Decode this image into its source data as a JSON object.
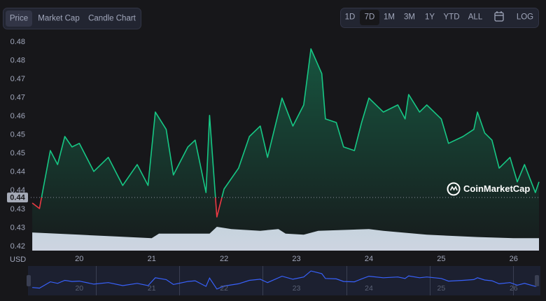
{
  "tabs": [
    "Price",
    "Market Cap",
    "Candle Chart"
  ],
  "ranges": [
    "1D",
    "7D",
    "1M",
    "3M",
    "1Y",
    "YTD",
    "ALL"
  ],
  "log_label": "LOG",
  "watermark": "CoinMarketCap",
  "chart_data": {
    "type": "line",
    "y_axis_label": "USD",
    "current_price": 0.435,
    "current_price_label": "0.44",
    "x": [
      19.35,
      19.45,
      19.5,
      19.6,
      19.7,
      19.8,
      19.9,
      20.0,
      20.2,
      20.4,
      20.6,
      20.8,
      20.95,
      21.05,
      21.2,
      21.3,
      21.5,
      21.6,
      21.75,
      21.8,
      21.9,
      22.0,
      22.2,
      22.35,
      22.5,
      22.6,
      22.8,
      22.95,
      23.1,
      23.2,
      23.35,
      23.4,
      23.55,
      23.65,
      23.8,
      23.9,
      24.0,
      24.2,
      24.4,
      24.5,
      24.55,
      24.7,
      24.8,
      25.0,
      25.1,
      25.3,
      25.45,
      25.5,
      25.6,
      25.7,
      25.8,
      25.95,
      26.05,
      26.15,
      26.3,
      26.35
    ],
    "series": [
      {
        "name": "Price",
        "color": "#16c784",
        "color_below": "#ea3943",
        "values": [
          0.4333,
          0.4316,
          0.4376,
          0.4494,
          0.4451,
          0.4537,
          0.4505,
          0.4516,
          0.443,
          0.4473,
          0.4387,
          0.4451,
          0.4387,
          0.4612,
          0.4559,
          0.4419,
          0.4505,
          0.4526,
          0.4365,
          0.4602,
          0.429,
          0.4376,
          0.444,
          0.4537,
          0.4569,
          0.4473,
          0.4655,
          0.4569,
          0.4634,
          0.4806,
          0.473,
          0.4591,
          0.458,
          0.4505,
          0.4494,
          0.458,
          0.4655,
          0.4612,
          0.4634,
          0.4591,
          0.4666,
          0.4612,
          0.4634,
          0.4591,
          0.4516,
          0.4537,
          0.4559,
          0.4612,
          0.4548,
          0.4526,
          0.444,
          0.4473,
          0.4398,
          0.4451,
          0.4365,
          0.4398
        ]
      }
    ],
    "volume": {
      "x": [
        19.35,
        20.0,
        20.5,
        21.0,
        21.1,
        21.8,
        21.9,
        22.1,
        22.5,
        22.75,
        22.85,
        23.1,
        23.3,
        24.0,
        24.2,
        24.8,
        25.5,
        26.0,
        26.35
      ],
      "values": [
        32,
        28,
        25,
        22,
        30,
        30,
        42,
        38,
        35,
        38,
        30,
        28,
        35,
        38,
        35,
        28,
        24,
        22,
        22
      ],
      "color": "#d1d4e3"
    },
    "xlim": [
      19.33,
      26.35
    ],
    "xticks": [
      20,
      21,
      22,
      23,
      24,
      25,
      26
    ],
    "ylim": [
      0.4187,
      0.4827
    ],
    "yticks": [
      {
        "value": 0.42,
        "label": "0.42"
      },
      {
        "value": 0.4257,
        "label": "0.43"
      },
      {
        "value": 0.4314,
        "label": "0.43"
      },
      {
        "value": 0.4371,
        "label": "0.44"
      },
      {
        "value": 0.4428,
        "label": "0.44"
      },
      {
        "value": 0.4485,
        "label": "0.45"
      },
      {
        "value": 0.4542,
        "label": "0.45"
      },
      {
        "value": 0.4599,
        "label": "0.46"
      },
      {
        "value": 0.4656,
        "label": "0.47"
      },
      {
        "value": 0.4713,
        "label": "0.47"
      },
      {
        "value": 0.477,
        "label": "0.48"
      },
      {
        "value": 0.4827,
        "label": "0.48"
      }
    ],
    "grid": false
  }
}
